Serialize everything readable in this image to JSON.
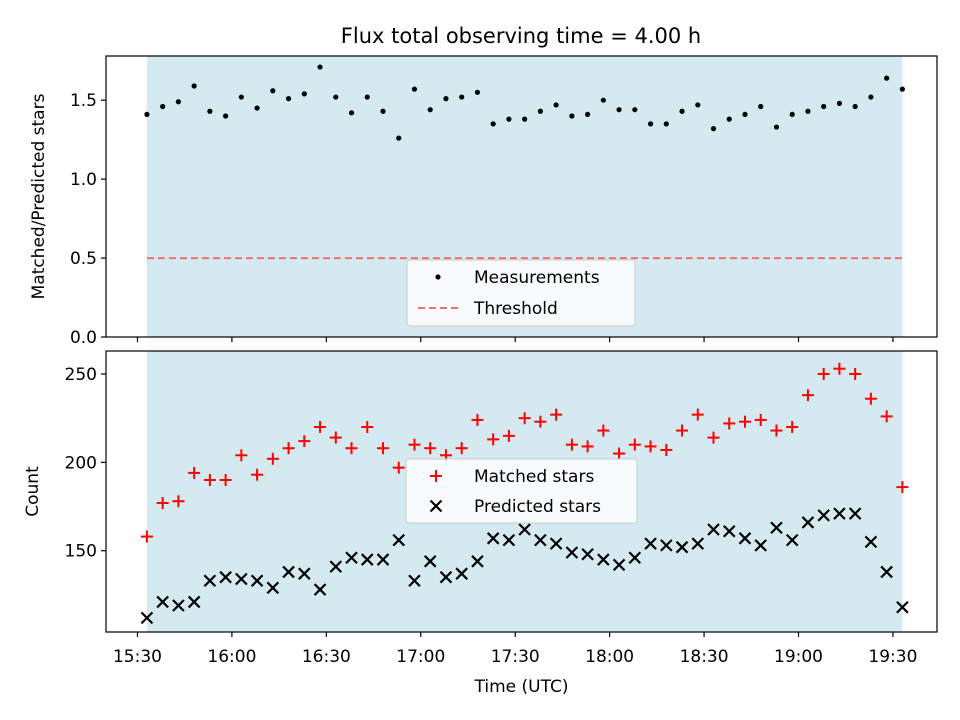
{
  "title": "Flux total observing time = 4.00 h",
  "chart_data": [
    {
      "type": "scatter",
      "panel": "top",
      "title": "Flux total observing time = 4.00 h",
      "xlabel": "",
      "ylabel": "Matched/Predicted stars",
      "ylim": [
        0,
        1.78
      ],
      "yticks": [
        0.0,
        0.5,
        1.0,
        1.5
      ],
      "ytick_labels": [
        "0.0",
        "0.5",
        "1.0",
        "1.5"
      ],
      "legend_position": "lower-center",
      "observing_window": [
        "15:33",
        "19:33"
      ],
      "series": [
        {
          "name": "Measurements",
          "marker": "dot",
          "color": "#000000",
          "x": [
            "15:33",
            "15:38",
            "15:43",
            "15:48",
            "15:53",
            "15:58",
            "16:03",
            "16:08",
            "16:13",
            "16:18",
            "16:23",
            "16:28",
            "16:33",
            "16:38",
            "16:43",
            "16:48",
            "16:53",
            "16:58",
            "17:03",
            "17:08",
            "17:13",
            "17:18",
            "17:23",
            "17:28",
            "17:33",
            "17:38",
            "17:43",
            "17:48",
            "17:53",
            "17:58",
            "18:03",
            "18:08",
            "18:13",
            "18:18",
            "18:23",
            "18:28",
            "18:33",
            "18:38",
            "18:43",
            "18:48",
            "18:53",
            "18:58",
            "19:03",
            "19:08",
            "19:13",
            "19:18",
            "19:23",
            "19:28",
            "19:33"
          ],
          "y": [
            1.41,
            1.46,
            1.49,
            1.59,
            1.43,
            1.4,
            1.52,
            1.45,
            1.56,
            1.51,
            1.54,
            1.71,
            1.52,
            1.42,
            1.52,
            1.43,
            1.26,
            1.57,
            1.44,
            1.51,
            1.52,
            1.55,
            1.35,
            1.38,
            1.38,
            1.43,
            1.47,
            1.4,
            1.41,
            1.5,
            1.44,
            1.44,
            1.35,
            1.35,
            1.43,
            1.47,
            1.32,
            1.38,
            1.41,
            1.46,
            1.33,
            1.41,
            1.43,
            1.46,
            1.48,
            1.46,
            1.52,
            1.64,
            1.57
          ]
        },
        {
          "name": "Threshold",
          "marker": "dashed-line",
          "color": "#f07070",
          "value": 0.5
        }
      ]
    },
    {
      "type": "scatter",
      "panel": "bottom",
      "xlabel": "Time (UTC)",
      "ylabel": "Count",
      "ylim": [
        104,
        263
      ],
      "yticks": [
        150,
        200,
        250
      ],
      "ytick_labels": [
        "150",
        "200",
        "250"
      ],
      "xtick_labels": [
        "15:30",
        "16:00",
        "16:30",
        "17:00",
        "17:30",
        "18:00",
        "18:30",
        "19:00",
        "19:30"
      ],
      "legend_position": "center",
      "series": [
        {
          "name": "Matched stars",
          "marker": "plus",
          "color": "#ff0000",
          "x": [
            "15:33",
            "15:38",
            "15:43",
            "15:48",
            "15:53",
            "15:58",
            "16:03",
            "16:08",
            "16:13",
            "16:18",
            "16:23",
            "16:28",
            "16:33",
            "16:38",
            "16:43",
            "16:48",
            "16:53",
            "16:58",
            "17:03",
            "17:08",
            "17:13",
            "17:18",
            "17:23",
            "17:28",
            "17:33",
            "17:38",
            "17:43",
            "17:48",
            "17:53",
            "17:58",
            "18:03",
            "18:08",
            "18:13",
            "18:18",
            "18:23",
            "18:28",
            "18:33",
            "18:38",
            "18:43",
            "18:48",
            "18:53",
            "18:58",
            "19:03",
            "19:08",
            "19:13",
            "19:18",
            "19:23",
            "19:28",
            "19:33"
          ],
          "y": [
            158,
            177,
            178,
            194,
            190,
            190,
            204,
            193,
            202,
            208,
            212,
            220,
            214,
            208,
            220,
            208,
            197,
            210,
            208,
            204,
            208,
            224,
            213,
            215,
            225,
            223,
            227,
            210,
            209,
            218,
            205,
            210,
            209,
            207,
            218,
            227,
            214,
            222,
            223,
            224,
            218,
            220,
            238,
            250,
            253,
            250,
            236,
            226,
            186
          ]
        },
        {
          "name": "Predicted stars",
          "marker": "x",
          "color": "#000000",
          "x": [
            "15:33",
            "15:38",
            "15:43",
            "15:48",
            "15:53",
            "15:58",
            "16:03",
            "16:08",
            "16:13",
            "16:18",
            "16:23",
            "16:28",
            "16:33",
            "16:38",
            "16:43",
            "16:48",
            "16:53",
            "16:58",
            "17:03",
            "17:08",
            "17:13",
            "17:18",
            "17:23",
            "17:28",
            "17:33",
            "17:38",
            "17:43",
            "17:48",
            "17:53",
            "17:58",
            "18:03",
            "18:08",
            "18:13",
            "18:18",
            "18:23",
            "18:28",
            "18:33",
            "18:38",
            "18:43",
            "18:48",
            "18:53",
            "18:58",
            "19:03",
            "19:08",
            "19:13",
            "19:18",
            "19:23",
            "19:28",
            "19:33"
          ],
          "y": [
            112,
            121,
            119,
            121,
            133,
            135,
            134,
            133,
            129,
            138,
            137,
            128,
            141,
            146,
            145,
            145,
            156,
            133,
            144,
            135,
            137,
            144,
            157,
            156,
            162,
            156,
            154,
            149,
            148,
            145,
            142,
            146,
            154,
            153,
            152,
            154,
            162,
            161,
            157,
            153,
            163,
            156,
            166,
            170,
            171,
            171,
            155,
            138,
            118
          ]
        }
      ]
    }
  ],
  "colors": {
    "observing_band": "#d4eaf0",
    "threshold": "#f07070",
    "matched": "#ff0000",
    "predicted": "#000000"
  }
}
